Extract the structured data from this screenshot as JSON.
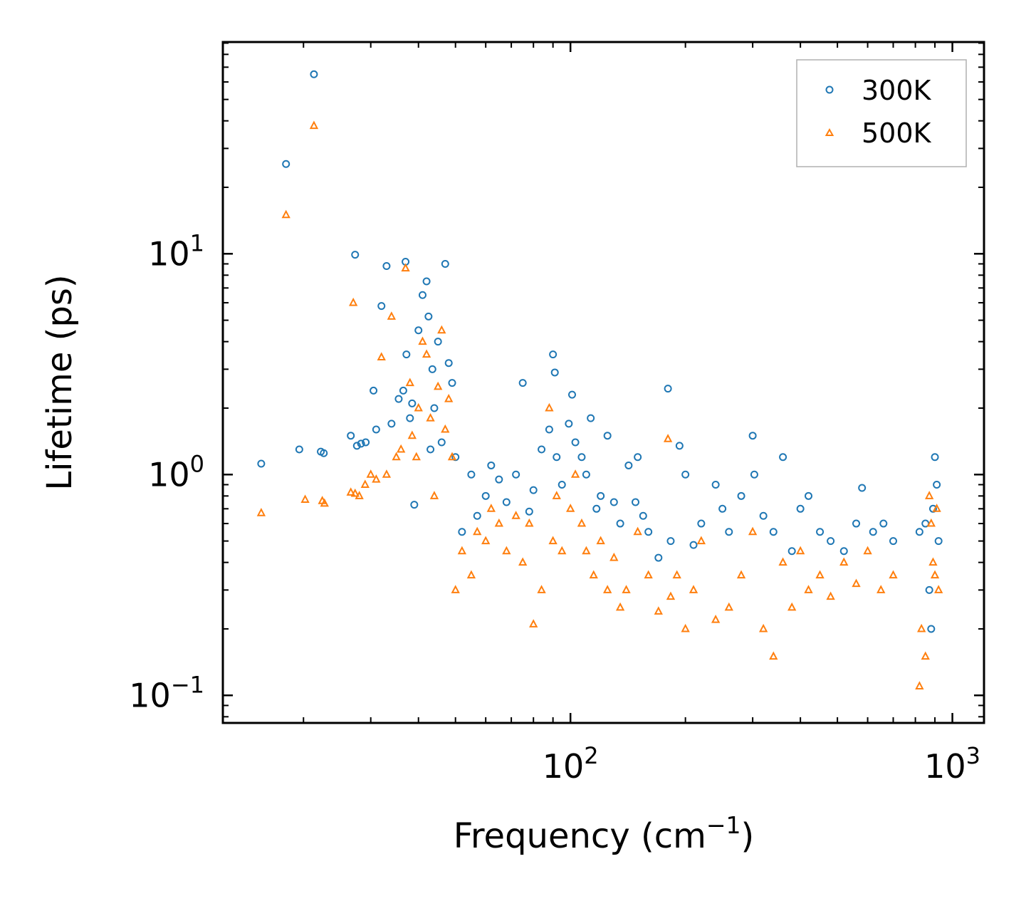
{
  "chart_data": {
    "type": "scatter",
    "title": "",
    "xlabel": "Frequency (cm",
    "xlabel_sup": "−1",
    "xlabel_close": ")",
    "ylabel": "Lifetime (ps)",
    "xscale": "log",
    "yscale": "log",
    "xlim": [
      12.3,
      1210
    ],
    "ylim": [
      0.075,
      91
    ],
    "xticks": [
      {
        "value": 100,
        "base": "10",
        "exp": "2"
      },
      {
        "value": 1000,
        "base": "10",
        "exp": "3"
      }
    ],
    "yticks": [
      {
        "value": 0.1,
        "base": "10",
        "exp": "−1"
      },
      {
        "value": 1,
        "base": "10",
        "exp": "0"
      },
      {
        "value": 10,
        "base": "10",
        "exp": "1"
      }
    ],
    "legend_position": "top-right",
    "series": [
      {
        "name": "300K",
        "marker": "circle",
        "color": "#1f77b4",
        "x": [
          15.5,
          18,
          19.5,
          21.3,
          22.2,
          22.6,
          26.6,
          27.3,
          27.6,
          28.3,
          29.1,
          30.5,
          31.0,
          32.0,
          33.0,
          34.0,
          35.5,
          36.5,
          37.0,
          37.2,
          38.0,
          38.5,
          39.0,
          40.0,
          41.0,
          42.0,
          42.5,
          43.0,
          43.5,
          44.0,
          45.0,
          46.0,
          47.0,
          48.0,
          49.0,
          50.0,
          52.0,
          55.0,
          57.0,
          60.0,
          62.0,
          65.0,
          68.0,
          72.0,
          75.0,
          78.0,
          80.0,
          84.0,
          88.0,
          90.0,
          91.0,
          92.0,
          95.0,
          99.0,
          101.0,
          103.0,
          107.0,
          110.0,
          113.0,
          117.0,
          120.0,
          125.0,
          130.0,
          135.0,
          142.0,
          148.0,
          150.0,
          155.0,
          160.0,
          170.0,
          180.0,
          183.0,
          193.0,
          200.0,
          210.0,
          220.0,
          240.0,
          250.0,
          260.0,
          280.0,
          300.0,
          303.0,
          320.0,
          340.0,
          360.0,
          380.0,
          400.0,
          420.0,
          450.0,
          480.0,
          520.0,
          560.0,
          580.0,
          620.0,
          660.0,
          700.0,
          820.0,
          850.0,
          870.0,
          880.0,
          890.0,
          900.0,
          910.0,
          920.0
        ],
        "y": [
          1.12,
          25.5,
          1.3,
          65,
          1.27,
          1.25,
          1.5,
          9.9,
          1.35,
          1.38,
          1.4,
          2.4,
          1.6,
          5.8,
          8.8,
          1.7,
          2.2,
          2.4,
          9.2,
          3.5,
          1.8,
          2.1,
          0.73,
          4.5,
          6.5,
          7.5,
          5.2,
          1.3,
          3.0,
          2.0,
          4.0,
          1.4,
          9.0,
          3.2,
          2.6,
          1.2,
          0.55,
          1.0,
          0.65,
          0.8,
          1.1,
          0.95,
          0.75,
          1.0,
          2.6,
          0.68,
          0.85,
          1.3,
          1.6,
          3.5,
          2.9,
          1.2,
          0.9,
          1.7,
          2.3,
          1.4,
          1.2,
          1.0,
          1.8,
          0.7,
          0.8,
          1.5,
          0.75,
          0.6,
          1.1,
          0.75,
          1.2,
          0.65,
          0.55,
          0.42,
          2.45,
          0.5,
          1.35,
          1.0,
          0.48,
          0.6,
          0.9,
          0.7,
          0.55,
          0.8,
          1.5,
          1.0,
          0.65,
          0.55,
          1.2,
          0.45,
          0.7,
          0.8,
          0.55,
          0.5,
          0.45,
          0.6,
          0.87,
          0.55,
          0.6,
          0.5,
          0.55,
          0.6,
          0.3,
          0.2,
          0.7,
          1.2,
          0.9,
          0.5
        ]
      },
      {
        "name": "500K",
        "marker": "triangle",
        "color": "#ff7f0e",
        "x": [
          15.5,
          18,
          20.2,
          21.3,
          22.4,
          22.7,
          26.6,
          27.0,
          27.3,
          28.0,
          29.0,
          30.0,
          31.0,
          32.0,
          33.0,
          34.0,
          35.0,
          36.0,
          37.0,
          38.0,
          38.5,
          39.5,
          40.0,
          41.0,
          42.0,
          43.0,
          44.0,
          45.0,
          46.0,
          47.0,
          48.0,
          49.0,
          50.0,
          52.0,
          55.0,
          57.0,
          60.0,
          62.0,
          65.0,
          68.0,
          72.0,
          75.0,
          78.0,
          80.0,
          84.0,
          88.0,
          90.0,
          92.0,
          95.0,
          100.0,
          103.0,
          107.0,
          110.0,
          115.0,
          120.0,
          125.0,
          130.0,
          135.0,
          140.0,
          150.0,
          160.0,
          170.0,
          180.0,
          183.0,
          190.0,
          200.0,
          210.0,
          220.0,
          240.0,
          260.0,
          280.0,
          300.0,
          320.0,
          340.0,
          360.0,
          380.0,
          400.0,
          420.0,
          450.0,
          480.0,
          520.0,
          560.0,
          600.0,
          650.0,
          700.0,
          820.0,
          830.0,
          850.0,
          870.0,
          880.0,
          890.0,
          900.0,
          910.0,
          920.0
        ],
        "y": [
          0.67,
          15.0,
          0.77,
          38.0,
          0.76,
          0.74,
          0.83,
          6.0,
          0.82,
          0.8,
          0.9,
          1.0,
          0.95,
          3.4,
          1.0,
          5.2,
          1.2,
          1.3,
          8.6,
          2.6,
          1.5,
          1.2,
          2.0,
          4.0,
          3.5,
          1.8,
          0.8,
          2.5,
          4.5,
          1.6,
          2.2,
          1.2,
          0.3,
          0.45,
          0.35,
          0.55,
          0.5,
          0.7,
          0.6,
          0.45,
          0.65,
          0.4,
          0.6,
          0.21,
          0.3,
          2.0,
          0.5,
          0.8,
          0.45,
          0.7,
          1.0,
          0.6,
          0.45,
          0.35,
          0.5,
          0.3,
          0.42,
          0.25,
          0.3,
          0.55,
          0.35,
          0.24,
          1.45,
          0.28,
          0.35,
          0.2,
          0.3,
          0.5,
          0.22,
          0.25,
          0.35,
          0.55,
          0.2,
          0.15,
          0.4,
          0.25,
          0.45,
          0.3,
          0.35,
          0.28,
          0.4,
          0.32,
          0.45,
          0.3,
          0.35,
          0.11,
          0.2,
          0.15,
          0.8,
          0.6,
          0.4,
          0.35,
          0.7,
          0.3
        ]
      }
    ]
  }
}
